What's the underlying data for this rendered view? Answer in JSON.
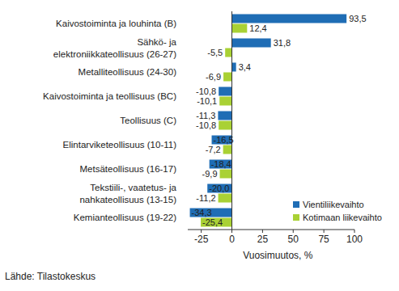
{
  "chart_data": {
    "type": "bar",
    "orientation": "horizontal",
    "categories": [
      "Kaivostoiminta ja louhinta (B)",
      "Sähkö- ja\nelektroniikkateollisuus (26-27)",
      "Metalliteollisuus (24-30)",
      "Kaivostoiminta ja teollisuus (BC)",
      "Teollisuus (C)",
      "Elintarviketeollisuus (10-11)",
      "Metsäteollisuus (16-17)",
      "Tekstiili-, vaatetus- ja\nnahkateollisuus (13-15)",
      "Kemianteollisuus (19-22)"
    ],
    "series": [
      {
        "name": "Vientiliikevaihto",
        "color": "#1f6db5",
        "values": [
          93.5,
          31.8,
          3.4,
          -10.8,
          -11.3,
          -16.5,
          -18.4,
          -20.0,
          -34.3
        ],
        "value_labels": [
          "93,5",
          "31,8",
          "3,4",
          "-10,8",
          "-11,3",
          "-16,5",
          "-18,4",
          "-20,0",
          "-34,3"
        ]
      },
      {
        "name": "Kotimaan liikevaihto",
        "color": "#a9d134",
        "values": [
          12.4,
          -5.5,
          -6.9,
          -10.1,
          -10.8,
          -7.2,
          -9.9,
          -11.2,
          -25.4
        ],
        "value_labels": [
          "12,4",
          "-5,5",
          "-6,9",
          "-10,1",
          "-10,8",
          "-7,2",
          "-9,9",
          "-11,2",
          "-25,4"
        ]
      }
    ],
    "xlim": [
      -36,
      100
    ],
    "xticks": [
      -25,
      0,
      25,
      50,
      75,
      100
    ],
    "x_label": "Vuosimuutos, %",
    "source": "Lähde: Tilastokeskus",
    "data_labels": true,
    "legend": "lower right",
    "grid": false
  }
}
